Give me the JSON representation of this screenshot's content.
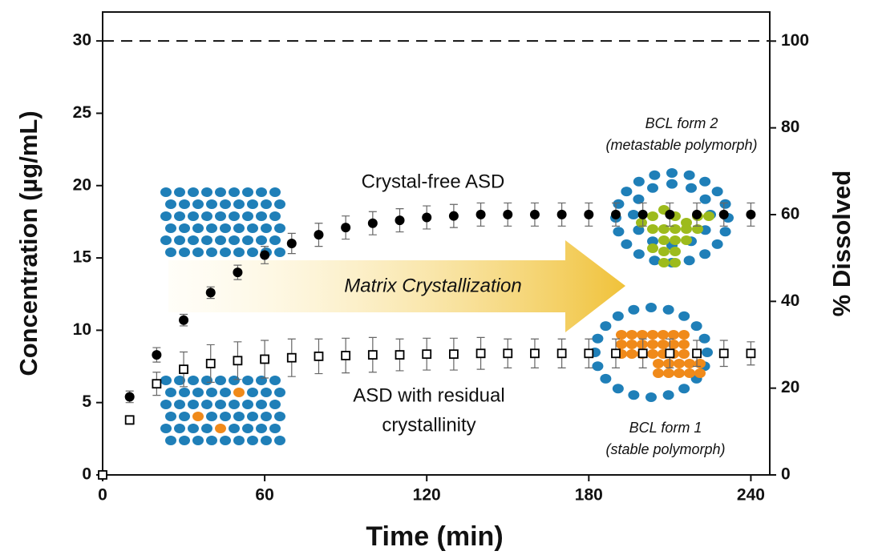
{
  "chart_data": {
    "type": "scatter",
    "x_label": "Time (min)",
    "y_label": "Concentration (µg/mL)",
    "y2_label": "% Dissolved",
    "x": [
      0,
      10,
      20,
      30,
      40,
      50,
      60,
      70,
      80,
      90,
      100,
      110,
      120,
      130,
      140,
      150,
      160,
      170,
      180,
      190,
      200,
      210,
      220,
      230,
      240
    ],
    "series": [
      {
        "marker": "circle",
        "color": "#000000",
        "values": [
          0,
          5.4,
          8.3,
          10.7,
          12.6,
          14.0,
          15.2,
          16.0,
          16.6,
          17.1,
          17.4,
          17.6,
          17.8,
          17.9,
          18.0,
          18.0,
          18.0,
          18.0,
          18.0,
          18.0,
          18.0,
          18.0,
          18.0,
          18.0,
          18.0
        ],
        "errors": [
          0,
          0.4,
          0.5,
          0.4,
          0.4,
          0.5,
          0.6,
          0.7,
          0.8,
          0.8,
          0.8,
          0.8,
          0.8,
          0.8,
          0.8,
          0.8,
          0.8,
          0.8,
          0.8,
          0.8,
          0.8,
          0.8,
          0.8,
          0.8,
          0.8
        ]
      },
      {
        "marker": "square-open",
        "color": "#000000",
        "values": [
          0,
          3.8,
          6.3,
          7.3,
          7.7,
          7.9,
          8.0,
          8.1,
          8.2,
          8.25,
          8.3,
          8.3,
          8.35,
          8.35,
          8.4,
          8.4,
          8.4,
          8.4,
          8.4,
          8.4,
          8.4,
          8.4,
          8.4,
          8.4,
          8.4
        ],
        "errors": [
          0,
          0.3,
          0.8,
          1.2,
          1.3,
          1.3,
          1.3,
          1.3,
          1.2,
          1.2,
          1.2,
          1.1,
          1.1,
          1.1,
          1.1,
          1.0,
          1.0,
          1.0,
          1.0,
          1.0,
          1.0,
          1.0,
          0.9,
          0.9,
          0.8
        ]
      }
    ],
    "reference_line": 30,
    "xlim": [
      0,
      247
    ],
    "xticks": [
      0,
      60,
      120,
      180,
      240
    ],
    "ylim": [
      0,
      32
    ],
    "yticks": [
      0,
      5,
      10,
      15,
      20,
      25,
      30
    ],
    "y2lim": [
      0,
      106.7
    ],
    "y2ticks": [
      0,
      20,
      40,
      60,
      80,
      100
    ],
    "annotations": [
      "Crystal-free ASD",
      "Matrix Crystallization",
      "ASD with residual",
      "crystallinity",
      "BCL form 2",
      "(metastable polymorph)",
      "BCL form 1",
      "(stable polymorph)"
    ]
  }
}
